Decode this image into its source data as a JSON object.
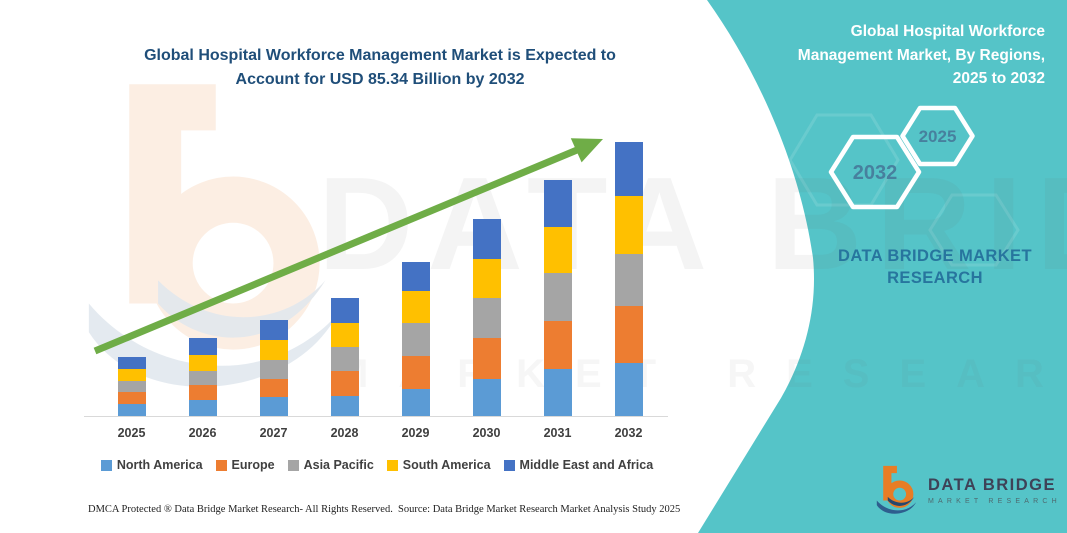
{
  "title": {
    "line1": "Global Hospital Workforce Management Market is Expected to",
    "line2": "Account for USD 85.34 Billion by 2032"
  },
  "side_panel": {
    "heading_line1": "Global Hospital Workforce",
    "heading_line2": "Management Market, By Regions,",
    "heading_line3": "2025 to 2032",
    "hexagon_back_label": "2032",
    "hexagon_front_label": "2025",
    "brand_line1": "DATA BRIDGE MARKET",
    "brand_line2": "RESEARCH"
  },
  "chart_data": {
    "type": "bar",
    "stacked": true,
    "title": "Global Hospital Workforce Management Market is Expected to Account for USD 85.34 Billion by 2032",
    "unit": "USD Billion (values estimated from bar heights; 2032 total labeled as 85.34)",
    "categories": [
      "2025",
      "2026",
      "2027",
      "2028",
      "2029",
      "2030",
      "2031",
      "2032"
    ],
    "series": [
      {
        "name": "North America",
        "color": "#5B9BD5",
        "values": [
          3.9,
          5.0,
          5.8,
          6.2,
          8.3,
          11.4,
          14.5,
          16.6
        ]
      },
      {
        "name": "Europe",
        "color": "#ED7D31",
        "values": [
          3.5,
          4.6,
          5.9,
          7.8,
          10.4,
          12.8,
          15.0,
          17.7
        ]
      },
      {
        "name": "Asia Pacific",
        "color": "#A5A5A5",
        "values": [
          3.4,
          4.5,
          5.9,
          7.6,
          10.4,
          12.5,
          15.1,
          16.3
        ]
      },
      {
        "name": "South America",
        "color": "#FFC000",
        "values": [
          3.9,
          4.9,
          6.2,
          7.5,
          9.9,
          12.1,
          14.3,
          17.9
        ]
      },
      {
        "name": "Middle East and Africa",
        "color": "#4472C4",
        "values": [
          3.8,
          5.2,
          6.2,
          7.6,
          9.0,
          12.5,
          14.7,
          16.84
        ]
      }
    ],
    "totals": [
      18.5,
      24.2,
      30.0,
      36.7,
      48.0,
      61.3,
      73.6,
      85.34
    ],
    "xlabel": "",
    "ylabel": "",
    "y_axis_visible": false,
    "grid": false,
    "legend_position": "bottom",
    "annotations": [
      "green upward trend arrow from 2025 to 2032"
    ]
  },
  "watermark": {
    "line1": "DATA BRIDGE",
    "line2": "MARKET RESEARCH"
  },
  "logo": {
    "line1": "DATA BRIDGE",
    "line2": "MARKET RESEARCH"
  },
  "footer": {
    "dmca": "DMCA Protected ® Data Bridge Market Research-  All Rights Reserved.",
    "source": "Source: Data Bridge Market Research  Market Analysis Study 2025"
  },
  "colors": {
    "teal_panel": "#55C4C8",
    "title_text": "#1F4E79",
    "arrow_green": "#6FAD47",
    "hexagon_label": "#47809E",
    "brand_text": "#27759E",
    "axis_label": "#3F3F3F"
  }
}
